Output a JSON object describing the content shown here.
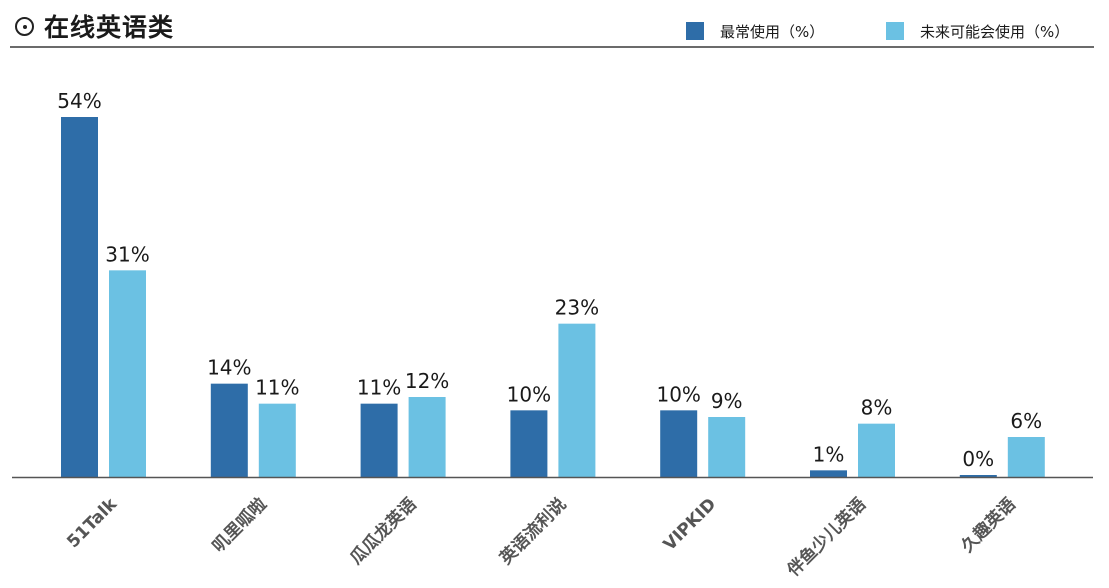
{
  "header": {
    "title": "在线英语类",
    "title_icon": "circle-dot-icon"
  },
  "legend": [
    {
      "label": "最常使用（%）",
      "color": "#2E6DA8"
    },
    {
      "label": "未来可能会使用（%）",
      "color": "#6BC1E3"
    }
  ],
  "chart_data": {
    "type": "bar",
    "categories": [
      "51Talk",
      "叽里呱啦",
      "瓜瓜龙英语",
      "英语流利说",
      "VIPKID",
      "伴鱼少儿英语",
      "久趣英语"
    ],
    "series": [
      {
        "name": "最常使用（%）",
        "color": "#2E6DA8",
        "values": [
          54,
          14,
          11,
          10,
          10,
          1,
          0
        ],
        "labels": [
          "54%",
          "14%",
          "11%",
          "10%",
          "10%",
          "1%",
          "0%"
        ]
      },
      {
        "name": "未来可能会使用（%）",
        "color": "#6BC1E3",
        "values": [
          31,
          11,
          12,
          23,
          9,
          8,
          6
        ],
        "labels": [
          "31%",
          "11%",
          "12%",
          "23%",
          "9%",
          "8%",
          "6%"
        ]
      }
    ],
    "ylim": [
      0,
      54
    ],
    "grid": false,
    "legend_position": "top-right",
    "title": "",
    "xlabel": "",
    "ylabel": ""
  }
}
